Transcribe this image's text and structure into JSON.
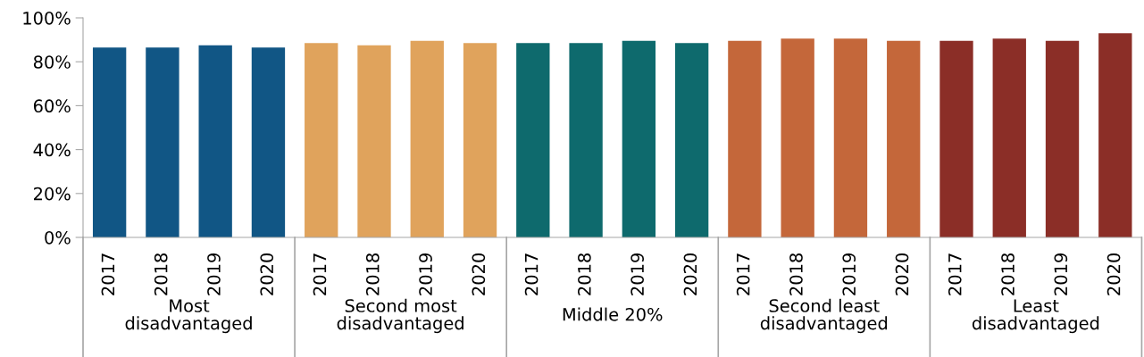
{
  "chart_data": {
    "type": "bar",
    "categories": [
      "2017",
      "2018",
      "2019",
      "2020",
      "2017",
      "2018",
      "2019",
      "2020",
      "2017",
      "2018",
      "2019",
      "2020",
      "2017",
      "2018",
      "2019",
      "2020",
      "2017",
      "2018",
      "2019",
      "2020"
    ],
    "values": [
      86.5,
      86.5,
      87.5,
      86.5,
      88.5,
      87.5,
      89.5,
      88.5,
      88.5,
      88.5,
      89.5,
      88.5,
      89.5,
      90.5,
      90.5,
      89.5,
      89.5,
      90.5,
      89.5,
      93
    ],
    "colors": [
      "#115685",
      "#115685",
      "#115685",
      "#115685",
      "#e0a35c",
      "#e0a35c",
      "#e0a35c",
      "#e0a35c",
      "#0e6a6d",
      "#0e6a6d",
      "#0e6a6d",
      "#0e6a6d",
      "#c4673a",
      "#c4673a",
      "#c4673a",
      "#c4673a",
      "#8b2e27",
      "#8b2e27",
      "#8b2e27",
      "#8b2e27"
    ],
    "annotations": [
      "Most disadvantaged",
      "Second most disadvantaged",
      "Middle 20%",
      "Second least disadvantaged",
      "Least disadvantaged"
    ],
    "ylim": [
      0,
      100
    ],
    "yticks": [
      {
        "value": 0,
        "label": "0%"
      },
      {
        "value": 20,
        "label": "20%"
      },
      {
        "value": 40,
        "label": "40%"
      },
      {
        "value": 60,
        "label": "60%"
      },
      {
        "value": 80,
        "label": "80%"
      },
      {
        "value": 100,
        "label": "100%"
      }
    ],
    "grid": false,
    "legend": false
  }
}
